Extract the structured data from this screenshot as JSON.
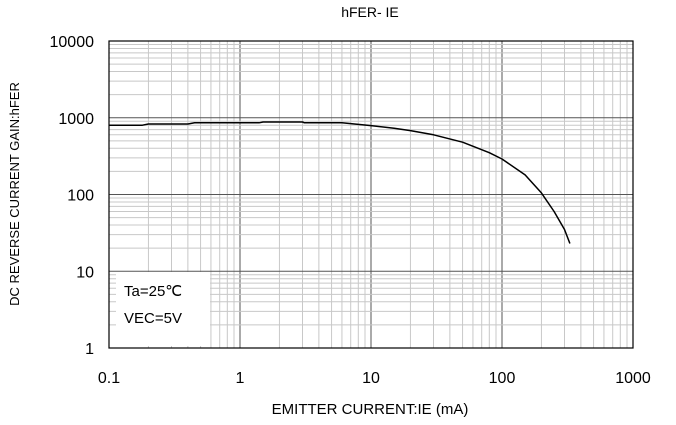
{
  "chart_data": {
    "type": "line",
    "title": "hFER- IE",
    "xlabel": "EMITTER CURRENT:IE (mA)",
    "ylabel": "DC REVERSE CURRENT GAIN:hFER",
    "x_scale": "log",
    "y_scale": "log",
    "xlim": [
      0.1,
      1000
    ],
    "ylim": [
      1,
      10000
    ],
    "x_ticks": [
      "0.1",
      "1",
      "10",
      "100",
      "1000"
    ],
    "y_ticks": [
      "1",
      "10",
      "100",
      "1000",
      "10000"
    ],
    "grid": true,
    "annotations": [
      "Ta=25℃",
      "VEC=5V"
    ],
    "series": [
      {
        "x": [
          0.1,
          0.18,
          0.2,
          0.4,
          0.45,
          1.4,
          1.5,
          3,
          3.1,
          6,
          8,
          10,
          15,
          20,
          30,
          50,
          80,
          100,
          150,
          200,
          250,
          300,
          330
        ],
        "y": [
          800,
          800,
          830,
          830,
          860,
          860,
          880,
          880,
          860,
          860,
          820,
          790,
          730,
          680,
          600,
          480,
          350,
          290,
          180,
          105,
          60,
          35,
          23
        ]
      }
    ]
  }
}
